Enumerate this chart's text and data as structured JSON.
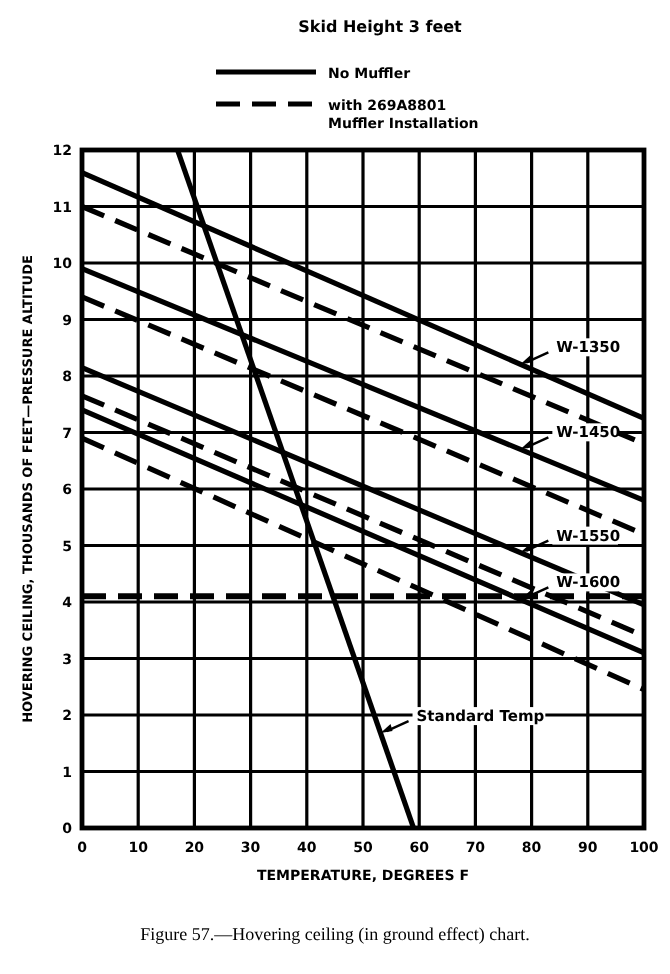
{
  "chart_data": {
    "type": "line",
    "title": "Skid Height 3 feet",
    "xlabel": "TEMPERATURE, DEGREES F",
    "ylabel": "HOVERING CEILING, THOUSANDS OF FEET—PRESSURE ALTITUDE",
    "xlim": [
      0,
      100
    ],
    "ylim": [
      0,
      12
    ],
    "xticks": [
      0,
      10,
      20,
      30,
      40,
      50,
      60,
      70,
      80,
      90,
      100
    ],
    "yticks": [
      0,
      1,
      2,
      3,
      4,
      5,
      6,
      7,
      8,
      9,
      10,
      11,
      12
    ],
    "grid": true,
    "legend": "bottom right",
    "marker": "none",
    "x": [
      0,
      100
    ],
    "series": [
      {
        "name": "W-1350",
        "color": "#000000",
        "line_style": "solid",
        "values": [
          11.6,
          7.25
        ]
      },
      {
        "color": "#000000",
        "line_style": "dashed",
        "values": [
          11.0,
          6.8
        ]
      },
      {
        "name": "W-1450",
        "color": "#000000",
        "line_style": "solid",
        "values": [
          9.9,
          5.8
        ]
      },
      {
        "color": "#000000",
        "line_style": "dashed",
        "values": [
          9.4,
          5.2
        ]
      },
      {
        "name": "W-1550",
        "color": "#000000",
        "line_style": "solid",
        "values": [
          8.15,
          3.95
        ]
      },
      {
        "color": "#000000",
        "line_style": "dashed",
        "values": [
          7.65,
          3.4
        ]
      },
      {
        "name": "W-1600",
        "color": "#000000",
        "line_style": "solid",
        "values": [
          7.4,
          3.1
        ]
      },
      {
        "color": "#000000",
        "line_style": "dashed",
        "values": [
          6.9,
          2.45
        ]
      },
      {
        "name": "Standard Temp",
        "color": "#000000",
        "line_style": "solid",
        "x": [
          17,
          59
        ],
        "values": [
          12,
          0
        ]
      }
    ],
    "ref_lines": [
      {
        "axis": "y",
        "value": 4.1,
        "color": "#000000",
        "line_style": "dashed"
      }
    ],
    "annotations": [
      "No Muffler",
      "with 269A8801 Muffler Installation",
      "Figure 57.—Hovering ceiling (in ground effect) chart."
    ]
  }
}
